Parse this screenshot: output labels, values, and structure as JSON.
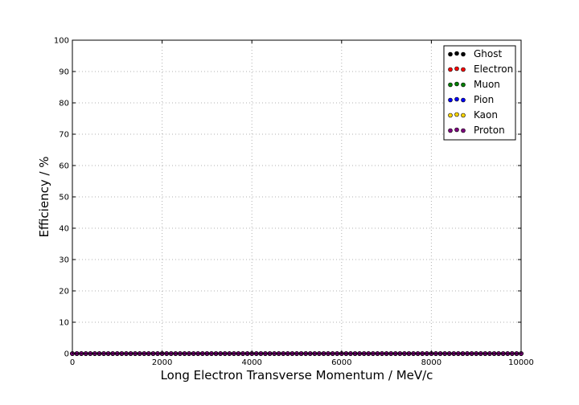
{
  "chart_data": {
    "type": "scatter",
    "xlabel": "Long Electron Transverse Momentum / MeV/c",
    "ylabel": "Efficiency / %",
    "xlim": [
      0,
      10000
    ],
    "ylim": [
      0,
      100
    ],
    "x_ticks": [
      0,
      2000,
      4000,
      6000,
      8000,
      10000
    ],
    "y_ticks": [
      0,
      10,
      20,
      30,
      40,
      50,
      60,
      70,
      80,
      90,
      100
    ],
    "grid": true,
    "legend_position": "top-right",
    "x_start": 0,
    "x_step": 100,
    "n_points": 101,
    "series": [
      {
        "name": "Ghost",
        "color": "#000000",
        "value": 0
      },
      {
        "name": "Electron",
        "color": "#ff0000",
        "value": 0
      },
      {
        "name": "Muon",
        "color": "#008000",
        "value": 0
      },
      {
        "name": "Pion",
        "color": "#0000ff",
        "value": 0
      },
      {
        "name": "Kaon",
        "color": "#ffd700",
        "value": 0
      },
      {
        "name": "Proton",
        "color": "#800080",
        "value": 0
      }
    ]
  }
}
